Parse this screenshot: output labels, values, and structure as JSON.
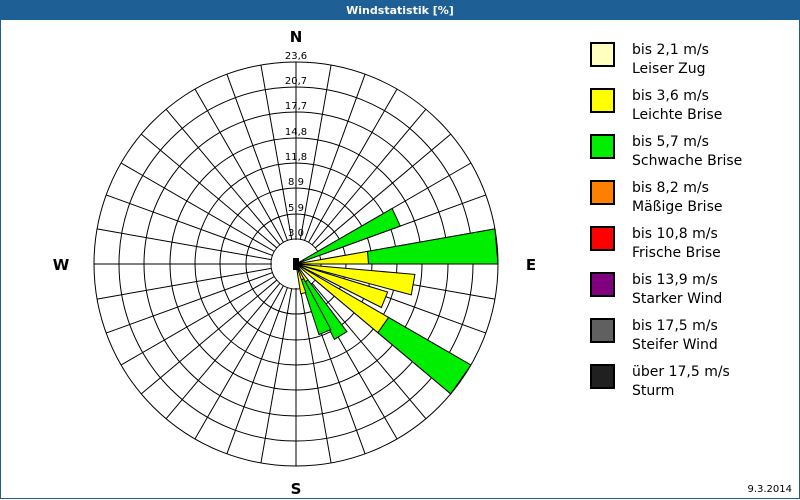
{
  "window": {
    "title": "Windstatistik [%]"
  },
  "footer": {
    "date": "9.3.2014"
  },
  "compass": {
    "N": "N",
    "E": "E",
    "S": "S",
    "W": "W"
  },
  "legend": [
    {
      "range": "bis 2,1 m/s",
      "name": "Leiser Zug",
      "color": "#ffffc0"
    },
    {
      "range": "bis 3,6 m/s",
      "name": "Leichte Brise",
      "color": "#ffff00"
    },
    {
      "range": "bis 5,7 m/s",
      "name": "Schwache Brise",
      "color": "#00ee00"
    },
    {
      "range": "bis 8,2 m/s",
      "name": "Mäßige Brise",
      "color": "#ff8000"
    },
    {
      "range": "bis 10,8 m/s",
      "name": "Frische Brise",
      "color": "#ff0000"
    },
    {
      "range": "bis 13,9 m/s",
      "name": "Starker Wind",
      "color": "#800080"
    },
    {
      "range": "bis 17,5 m/s",
      "name": "Steifer Wind",
      "color": "#606060"
    },
    {
      "range": "über 17,5 m/s",
      "name": "Sturm",
      "color": "#202020"
    }
  ],
  "chart_data": {
    "type": "wind-rose",
    "title": "Windstatistik [%]",
    "unit": "%",
    "center": [
      296,
      264
    ],
    "hole_radius": 25,
    "ring_radii": [
      25,
      50,
      76,
      101,
      126,
      152,
      177,
      202
    ],
    "ring_labels": [
      "3,0",
      "5,9",
      "8,9",
      "11,8",
      "14,8",
      "17,7",
      "20,7",
      "23,6"
    ],
    "ring_values": [
      3.0,
      5.9,
      8.9,
      11.8,
      14.8,
      17.7,
      20.7,
      23.6
    ],
    "sector_width_deg": 10,
    "spoke_step_deg": 10,
    "series_order": [
      "bis 3,6 m/s",
      "bis 5,7 m/s"
    ],
    "petals": [
      {
        "bearing": 65,
        "yellow": 1.0,
        "green": 12.0
      },
      {
        "bearing": 85,
        "yellow": 8.5,
        "green": 23.4
      },
      {
        "bearing": 100,
        "yellow": 14.0,
        "green": 0
      },
      {
        "bearing": 112,
        "yellow": 11.2,
        "green": 0
      },
      {
        "bearing": 125,
        "yellow": 12.5,
        "green": 16.3
      },
      {
        "bearing": 148,
        "yellow": 2.4,
        "green": 7.5
      },
      {
        "bearing": 157,
        "yellow": 2.0,
        "green": 6.7
      },
      {
        "bearing": 166,
        "yellow": 3.6,
        "green": 0
      }
    ],
    "legend_position": "right"
  }
}
